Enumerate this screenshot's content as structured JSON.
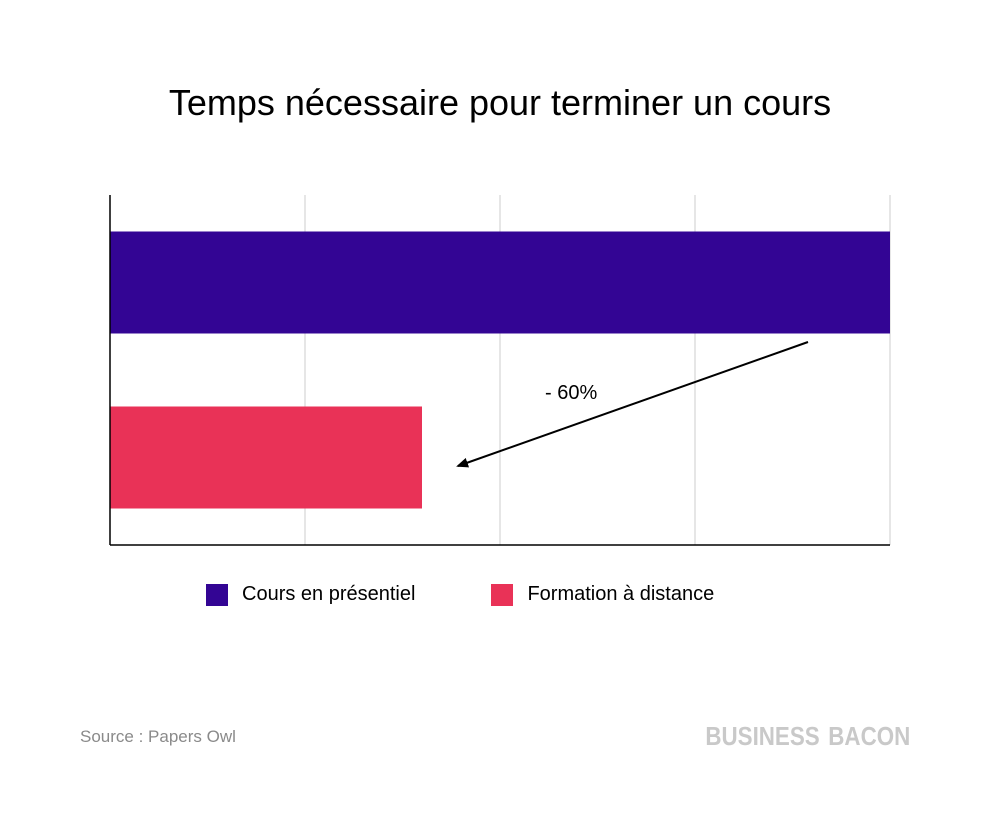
{
  "chart_data": {
    "type": "bar",
    "orientation": "horizontal",
    "title": "Temps nécessaire pour terminer un cours",
    "categories": [
      "Cours en présentiel",
      "Formation à distance"
    ],
    "values": [
      100,
      40
    ],
    "xlim": [
      0,
      100
    ],
    "grid": true,
    "legend_position": "bottom",
    "colors": [
      "#330594",
      "#e93257"
    ],
    "annotation": "- 60%"
  },
  "legend": {
    "items": [
      {
        "label": "Cours en présentiel",
        "color": "#330594"
      },
      {
        "label": "Formation à distance",
        "color": "#e93257"
      }
    ]
  },
  "footer": {
    "source": "Source : Papers Owl",
    "brand_part1": "BUSINESS",
    "brand_part2": "BACON"
  }
}
